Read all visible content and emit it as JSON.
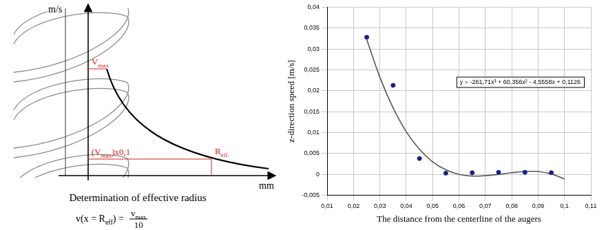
{
  "diagram": {
    "y_axis_label": "m/s",
    "x_axis_label": "mm",
    "vmax_label": [
      "V",
      "max"
    ],
    "vmax_tenth_label": [
      "(V",
      "max",
      ")x0,1"
    ],
    "reff_label": [
      "R",
      "eff."
    ],
    "caption": "Determination of effective radius",
    "formula": {
      "left": [
        "v(x = R",
        "eff",
        ") ="
      ],
      "numerator": [
        "v",
        "max"
      ],
      "denominator": "10"
    }
  },
  "chart_data": {
    "type": "scatter",
    "x_label": "The distance from the centerline of the augers",
    "y_label": "z-direction speed [m/s]",
    "annotation": "y = -261,71x³ + 60,356x² - 4,5558x + 0,1126",
    "xlim": [
      0.01,
      0.11
    ],
    "xticks": [
      {
        "value": 0.01,
        "label": "0,01"
      },
      {
        "value": 0.02,
        "label": "0,02"
      },
      {
        "value": 0.03,
        "label": "0,03"
      },
      {
        "value": 0.04,
        "label": "0,04"
      },
      {
        "value": 0.05,
        "label": "0,05"
      },
      {
        "value": 0.06,
        "label": "0,06"
      },
      {
        "value": 0.07,
        "label": "0,07"
      },
      {
        "value": 0.08,
        "label": "0,08"
      },
      {
        "value": 0.09,
        "label": "0,09"
      },
      {
        "value": 0.1,
        "label": "0,1"
      },
      {
        "value": 0.11,
        "label": "0,11"
      }
    ],
    "ylim": [
      -0.005,
      0.04
    ],
    "yticks": [
      {
        "value": -0.005,
        "label": "-0,005"
      },
      0,
      {
        "value": 0.005,
        "label": "0,005"
      },
      {
        "value": 0.01,
        "label": "0,01"
      },
      {
        "value": 0.015,
        "label": "0,015"
      },
      {
        "value": 0.02,
        "label": "0,02"
      },
      {
        "value": 0.025,
        "label": "0,025"
      },
      {
        "value": 0.03,
        "label": "0,03"
      },
      {
        "value": 0.035,
        "label": "0,035"
      },
      {
        "value": 0.04,
        "label": "0,04"
      }
    ],
    "grid": true,
    "series": [
      {
        "type": "scatter",
        "color": "#1c1c8c",
        "marker": "circle",
        "x": [
          0.025,
          0.035,
          0.045,
          0.055,
          0.065,
          0.075,
          0.085,
          0.095
        ],
        "values": [
          0.0328,
          0.0213,
          0.0038,
          0.0003,
          0.0004,
          0.0005,
          0.0005,
          0.0004
        ]
      },
      {
        "type": "line",
        "color": "#555555",
        "marker": "none",
        "line_style": "solid",
        "x": [
          0.025,
          0.03,
          0.035,
          0.04,
          0.045,
          0.05,
          0.055,
          0.06,
          0.065,
          0.07,
          0.075,
          0.08,
          0.085,
          0.09,
          0.095,
          0.1
        ],
        "values": [
          0.0323,
          0.0232,
          0.0159,
          0.0102,
          0.006,
          0.003,
          0.0011,
          0.0,
          -0.0004,
          -0.0003,
          0.0,
          0.0004,
          0.0007,
          0.0007,
          0.0001,
          -0.0011
        ]
      }
    ]
  }
}
